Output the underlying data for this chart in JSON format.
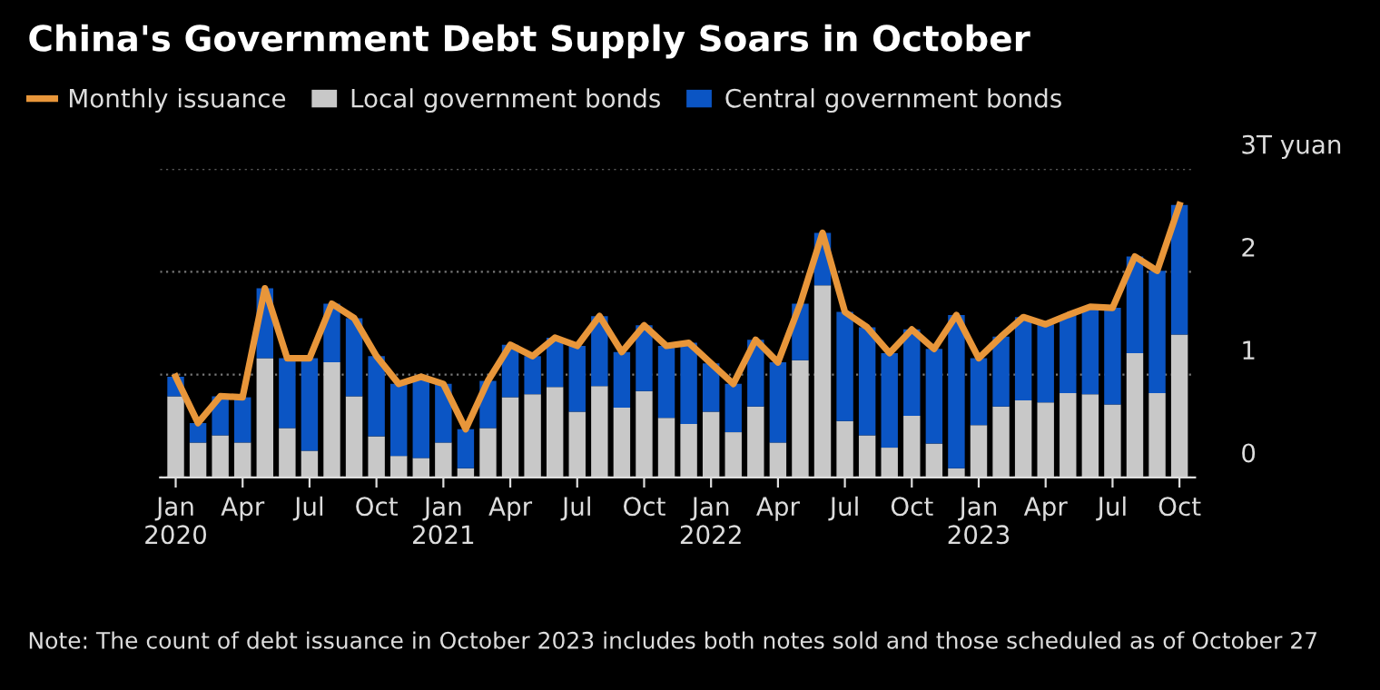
{
  "chart_data": {
    "type": "bar",
    "stacked": true,
    "title": "China's Government Debt Supply Soars in October",
    "categories": [
      "Jan\n2020",
      null,
      null,
      "Apr",
      null,
      null,
      "Jul",
      null,
      null,
      "Oct",
      null,
      null,
      "Jan\n2021",
      null,
      null,
      "Apr",
      null,
      null,
      "Jul",
      null,
      null,
      "Oct",
      null,
      null,
      "Jan\n2022",
      null,
      null,
      "Apr",
      null,
      null,
      "Jul",
      null,
      null,
      "Oct",
      null,
      null,
      "Jan\n2023",
      null,
      null,
      "Apr",
      null,
      null,
      "Jul",
      null,
      null,
      "Oct"
    ],
    "series": [
      {
        "name": "Monthly issuance",
        "type": "line",
        "color": "#e8963a",
        "values": [
          0.98,
          0.53,
          0.79,
          0.78,
          1.84,
          1.16,
          1.16,
          1.69,
          1.55,
          1.18,
          0.91,
          0.98,
          0.91,
          0.47,
          0.94,
          1.29,
          1.18,
          1.36,
          1.28,
          1.57,
          1.22,
          1.48,
          1.28,
          1.31,
          1.11,
          0.91,
          1.34,
          1.12,
          1.69,
          2.38,
          1.61,
          1.46,
          1.21,
          1.44,
          1.25,
          1.58,
          1.16,
          1.37,
          1.56,
          1.49,
          1.58,
          1.66,
          1.65,
          2.15,
          2.01,
          2.65
        ]
      },
      {
        "name": "Local government bonds",
        "color": "#c8c8c8",
        "values": [
          0.79,
          0.34,
          0.41,
          0.34,
          1.16,
          0.48,
          0.26,
          1.12,
          0.79,
          0.4,
          0.21,
          0.19,
          0.34,
          0.09,
          0.48,
          0.78,
          0.81,
          0.88,
          0.64,
          0.89,
          0.68,
          0.84,
          0.58,
          0.52,
          0.64,
          0.44,
          0.69,
          0.34,
          1.14,
          1.87,
          0.55,
          0.41,
          0.29,
          0.6,
          0.33,
          0.09,
          0.51,
          0.69,
          0.75,
          0.73,
          0.82,
          0.81,
          0.71,
          1.21,
          0.82,
          1.39
        ]
      },
      {
        "name": "Central government bonds",
        "color": "#0b55c4",
        "values": [
          0.19,
          0.19,
          0.38,
          0.44,
          0.68,
          0.68,
          0.9,
          0.57,
          0.76,
          0.78,
          0.7,
          0.79,
          0.57,
          0.38,
          0.46,
          0.51,
          0.37,
          0.48,
          0.64,
          0.68,
          0.54,
          0.64,
          0.7,
          0.79,
          0.47,
          0.47,
          0.65,
          0.78,
          0.55,
          0.51,
          1.06,
          1.05,
          0.92,
          0.84,
          0.92,
          1.49,
          0.65,
          0.68,
          0.81,
          0.76,
          0.76,
          0.85,
          0.94,
          0.94,
          1.19,
          1.26
        ]
      }
    ],
    "ylim": [
      0,
      3
    ],
    "yticks": [
      0,
      1,
      2,
      {
        "value": 3,
        "label": "3T yuan"
      }
    ],
    "grid": "y",
    "legend": "top left",
    "annotations": [
      "Note: The count of debt issuance in October 2023 includes both notes sold and those scheduled as of October 27"
    ]
  }
}
